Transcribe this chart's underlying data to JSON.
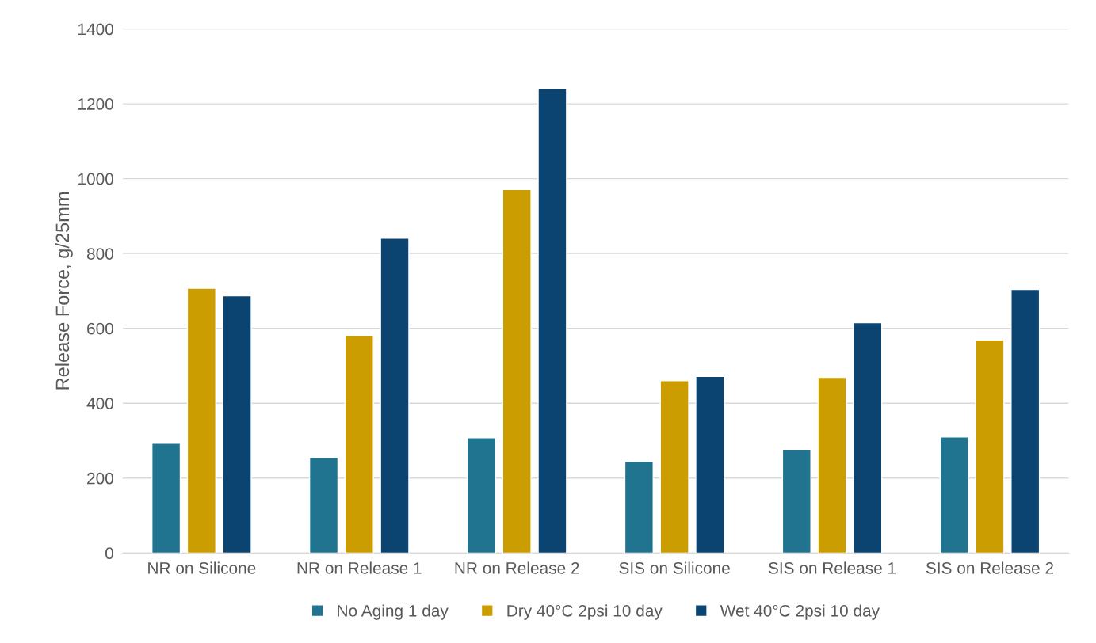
{
  "chart_data": {
    "type": "bar",
    "ylabel": "Release Force, g/25mm",
    "categories": [
      "NR on Silicone",
      "NR on Release 1",
      "NR on Release 2",
      "SIS on Silicone",
      "SIS on Release 1",
      "SIS on Release 2"
    ],
    "series": [
      {
        "name": "No Aging 1 day",
        "color": "#21748f",
        "values": [
          293,
          255,
          308,
          245,
          277,
          310
        ]
      },
      {
        "name": "Dry 40°C 2psi 10 day",
        "color": "#cc9d00",
        "values": [
          707,
          582,
          971,
          460,
          469,
          569
        ]
      },
      {
        "name": "Wet 40°C 2psi 10 day",
        "color": "#0b4470",
        "values": [
          687,
          841,
          1241,
          472,
          615,
          704
        ]
      }
    ],
    "ylim": [
      0,
      1400
    ],
    "yticks": [
      0,
      200,
      400,
      600,
      800,
      1000,
      1200,
      1400
    ],
    "grid": "y",
    "legend": "bottom"
  }
}
